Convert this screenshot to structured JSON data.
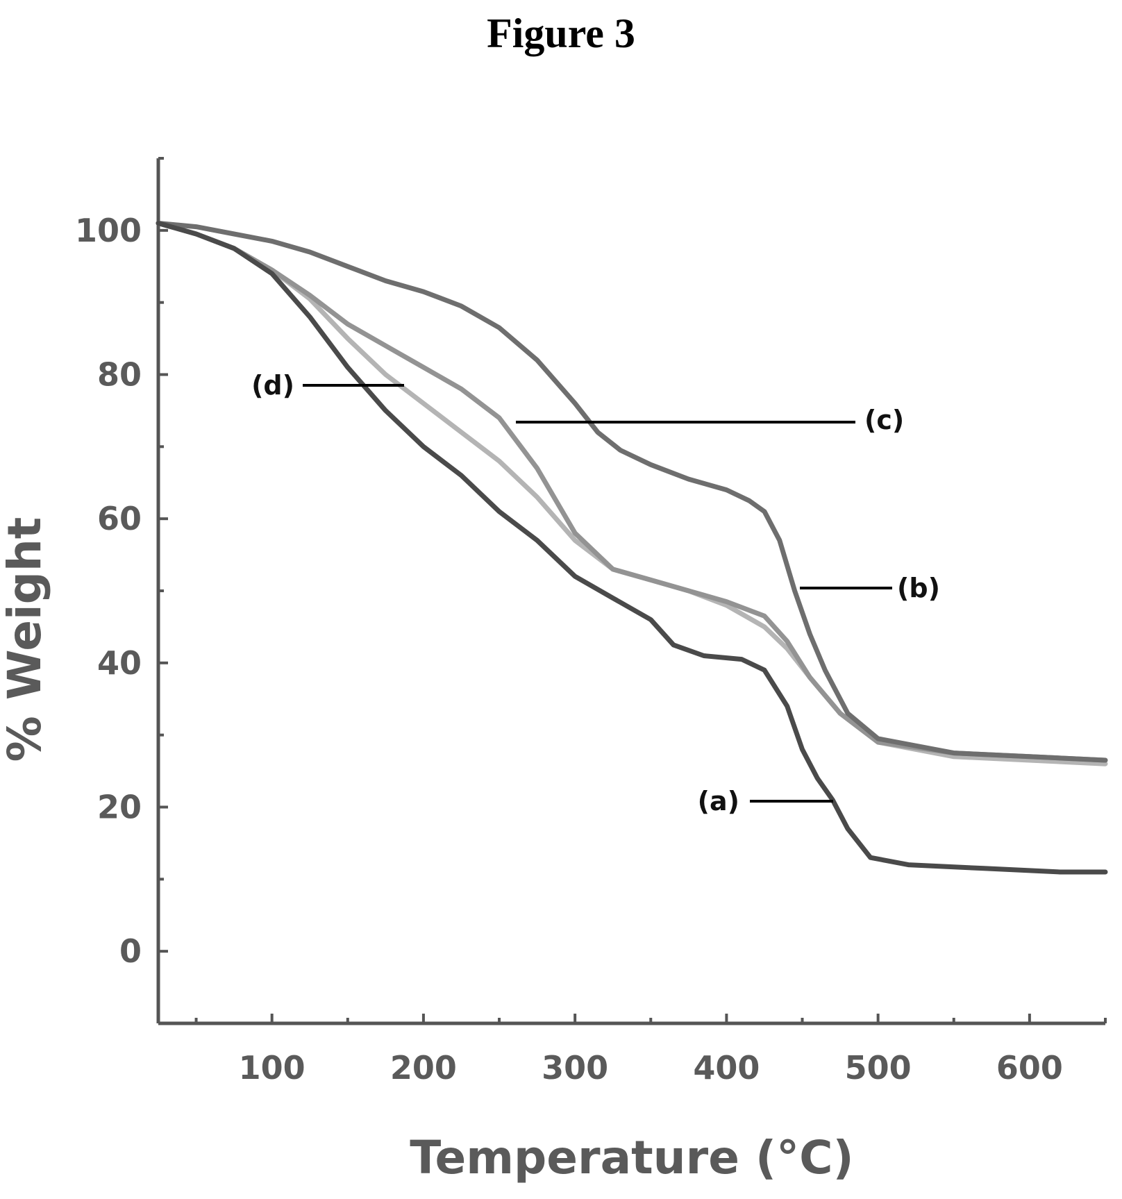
{
  "figure_title": "Figure 3",
  "chart_data": {
    "type": "line",
    "xlabel": "Temperature (°C)",
    "ylabel": "% Weight",
    "xlim": [
      25,
      650
    ],
    "ylim": [
      -10,
      110
    ],
    "x_ticks": [
      100,
      200,
      300,
      400,
      500,
      600
    ],
    "y_ticks": [
      0,
      20,
      40,
      60,
      80,
      100
    ],
    "grid": false,
    "series": [
      {
        "name": "(a)",
        "color": "#4a4a4a",
        "points": [
          [
            25,
            101
          ],
          [
            50,
            99.5
          ],
          [
            75,
            97.5
          ],
          [
            100,
            94
          ],
          [
            125,
            88
          ],
          [
            150,
            81
          ],
          [
            175,
            75
          ],
          [
            200,
            70
          ],
          [
            225,
            66
          ],
          [
            250,
            61
          ],
          [
            275,
            57
          ],
          [
            300,
            52
          ],
          [
            325,
            49
          ],
          [
            350,
            46
          ],
          [
            365,
            42.5
          ],
          [
            385,
            41
          ],
          [
            410,
            40.5
          ],
          [
            425,
            39
          ],
          [
            440,
            34
          ],
          [
            450,
            28
          ],
          [
            460,
            24
          ],
          [
            470,
            21
          ],
          [
            480,
            17
          ],
          [
            495,
            13
          ],
          [
            520,
            12
          ],
          [
            570,
            11.5
          ],
          [
            620,
            11
          ],
          [
            650,
            11
          ]
        ]
      },
      {
        "name": "(b)",
        "color": "#6e6e6e",
        "points": [
          [
            25,
            101
          ],
          [
            50,
            100.5
          ],
          [
            75,
            99.5
          ],
          [
            100,
            98.5
          ],
          [
            125,
            97
          ],
          [
            150,
            95
          ],
          [
            175,
            93
          ],
          [
            200,
            91.5
          ],
          [
            225,
            89.5
          ],
          [
            250,
            86.5
          ],
          [
            275,
            82
          ],
          [
            300,
            76
          ],
          [
            315,
            72
          ],
          [
            330,
            69.5
          ],
          [
            350,
            67.5
          ],
          [
            375,
            65.5
          ],
          [
            400,
            64
          ],
          [
            415,
            62.5
          ],
          [
            425,
            61
          ],
          [
            435,
            57
          ],
          [
            445,
            50
          ],
          [
            455,
            44
          ],
          [
            465,
            39
          ],
          [
            480,
            33
          ],
          [
            500,
            29.5
          ],
          [
            550,
            27.5
          ],
          [
            600,
            27
          ],
          [
            650,
            26.5
          ]
        ]
      },
      {
        "name": "(c)",
        "color": "#939393",
        "points": [
          [
            25,
            101
          ],
          [
            50,
            99.5
          ],
          [
            75,
            97.5
          ],
          [
            100,
            94.5
          ],
          [
            125,
            91
          ],
          [
            150,
            87
          ],
          [
            175,
            84
          ],
          [
            200,
            81
          ],
          [
            225,
            78
          ],
          [
            250,
            74
          ],
          [
            275,
            67
          ],
          [
            300,
            58
          ],
          [
            325,
            53
          ],
          [
            350,
            51.5
          ],
          [
            375,
            50
          ],
          [
            400,
            48.5
          ],
          [
            425,
            46.5
          ],
          [
            440,
            43
          ],
          [
            455,
            38
          ],
          [
            475,
            33
          ],
          [
            500,
            29
          ],
          [
            550,
            27.5
          ],
          [
            600,
            27
          ],
          [
            650,
            26.5
          ]
        ]
      },
      {
        "name": "(d)",
        "color": "#b4b4b4",
        "points": [
          [
            25,
            101
          ],
          [
            50,
            99.5
          ],
          [
            75,
            97.5
          ],
          [
            100,
            94.5
          ],
          [
            125,
            90.5
          ],
          [
            150,
            85
          ],
          [
            175,
            80
          ],
          [
            200,
            76
          ],
          [
            225,
            72
          ],
          [
            250,
            68
          ],
          [
            275,
            63
          ],
          [
            300,
            57
          ],
          [
            325,
            53
          ],
          [
            350,
            51.5
          ],
          [
            375,
            50
          ],
          [
            400,
            48
          ],
          [
            425,
            45
          ],
          [
            440,
            42
          ],
          [
            455,
            38
          ],
          [
            475,
            33
          ],
          [
            500,
            29
          ],
          [
            550,
            27
          ],
          [
            600,
            26.5
          ],
          [
            650,
            26
          ]
        ]
      }
    ]
  }
}
